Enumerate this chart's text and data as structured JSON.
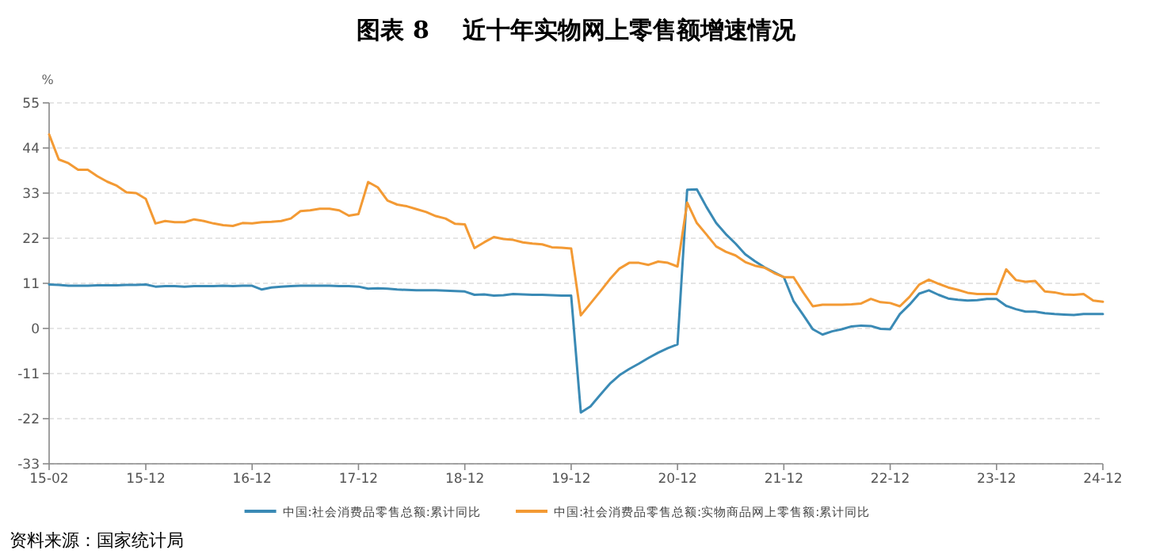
{
  "chart_data": {
    "type": "line",
    "title": "图表 8    近十年实物网上零售额增速情况",
    "ylabel": "%",
    "annotations": [
      "资料来源：国家统计局"
    ],
    "categories": [
      "15-02",
      null,
      null,
      null,
      null,
      null,
      null,
      null,
      null,
      null,
      "15-12",
      null,
      null,
      null,
      null,
      null,
      null,
      null,
      null,
      null,
      null,
      "16-12",
      null,
      null,
      null,
      null,
      null,
      null,
      null,
      null,
      null,
      null,
      "17-12",
      null,
      null,
      null,
      null,
      null,
      null,
      null,
      null,
      null,
      null,
      "18-12",
      null,
      null,
      null,
      null,
      null,
      null,
      null,
      null,
      null,
      null,
      "19-12",
      null,
      null,
      null,
      null,
      null,
      null,
      null,
      null,
      null,
      null,
      "20-12",
      null,
      null,
      null,
      null,
      null,
      null,
      null,
      null,
      null,
      null,
      "21-12",
      null,
      null,
      null,
      null,
      null,
      null,
      null,
      null,
      null,
      null,
      "22-12",
      null,
      null,
      null,
      null,
      null,
      null,
      null,
      null,
      null,
      null,
      "23-12",
      null,
      null,
      null,
      null,
      null,
      null,
      null,
      null,
      null,
      null,
      "24-12"
    ],
    "series": [
      {
        "name": "中国:社会消费品零售总额:累计同比",
        "color": "#3a8ab5",
        "values": [
          10.7,
          10.6,
          10.4,
          10.4,
          10.4,
          10.5,
          10.5,
          10.5,
          10.6,
          10.6,
          10.7,
          10.2,
          10.3,
          10.3,
          10.2,
          10.3,
          10.3,
          10.3,
          10.4,
          10.3,
          10.4,
          10.4,
          9.5,
          10.0,
          10.2,
          10.3,
          10.4,
          10.4,
          10.4,
          10.4,
          10.3,
          10.3,
          10.2,
          9.7,
          9.8,
          9.7,
          9.5,
          9.4,
          9.3,
          9.3,
          9.3,
          9.2,
          9.1,
          9.0,
          8.2,
          8.3,
          8.0,
          8.1,
          8.4,
          8.3,
          8.2,
          8.2,
          8.1,
          8.0,
          8.0,
          -20.5,
          -19.0,
          -16.2,
          -13.5,
          -11.4,
          -9.9,
          -8.6,
          -7.2,
          -5.9,
          -4.8,
          -3.9,
          33.8,
          33.9,
          29.6,
          25.7,
          23.0,
          20.7,
          18.1,
          16.4,
          14.9,
          13.7,
          12.5,
          6.7,
          3.3,
          -0.2,
          -1.5,
          -0.7,
          -0.2,
          0.5,
          0.7,
          0.6,
          -0.1,
          -0.2,
          3.5,
          5.8,
          8.5,
          9.3,
          8.2,
          7.3,
          7.0,
          6.8,
          6.9,
          7.2,
          7.2,
          5.5,
          4.7,
          4.1,
          4.1,
          3.7,
          3.5,
          3.4,
          3.3,
          3.5,
          3.5,
          3.5
        ]
      },
      {
        "name": "中国:社会消费品零售总额:实物商品网上零售额:累计同比",
        "color": "#f39a34",
        "values": [
          47.3,
          41.2,
          40.3,
          38.7,
          38.7,
          37.1,
          35.8,
          34.8,
          33.2,
          33.0,
          31.6,
          25.6,
          26.2,
          25.9,
          25.9,
          26.6,
          26.2,
          25.6,
          25.2,
          25.0,
          25.7,
          25.6,
          25.9,
          26.0,
          26.2,
          26.8,
          28.6,
          28.8,
          29.2,
          29.2,
          28.8,
          27.5,
          27.9,
          35.7,
          34.4,
          31.2,
          30.2,
          29.8,
          29.1,
          28.4,
          27.4,
          26.8,
          25.5,
          25.4,
          19.6,
          21.0,
          22.3,
          21.8,
          21.6,
          21.0,
          20.7,
          20.5,
          19.8,
          19.7,
          19.5,
          3.2,
          6.1,
          9.0,
          12.0,
          14.6,
          16.0,
          16.0,
          15.5,
          16.3,
          16.0,
          15.1,
          30.7,
          25.7,
          22.9,
          20.0,
          18.7,
          17.8,
          16.2,
          15.3,
          14.8,
          13.5,
          12.5,
          12.5,
          8.8,
          5.4,
          5.8,
          5.8,
          5.8,
          5.9,
          6.1,
          7.2,
          6.4,
          6.2,
          5.4,
          7.7,
          10.7,
          11.9,
          10.9,
          10.0,
          9.4,
          8.7,
          8.4,
          8.4,
          8.4,
          14.4,
          11.8,
          11.4,
          11.6,
          9.0,
          8.8,
          8.3,
          8.2,
          8.4,
          6.8,
          6.5
        ]
      }
    ],
    "ylim": [
      -33,
      55
    ],
    "yticks": [
      -33,
      -22,
      -11,
      0,
      11,
      22,
      33,
      44,
      55
    ],
    "grid": "y",
    "legend": "bottom",
    "marker": "none",
    "line_style": "solid"
  }
}
